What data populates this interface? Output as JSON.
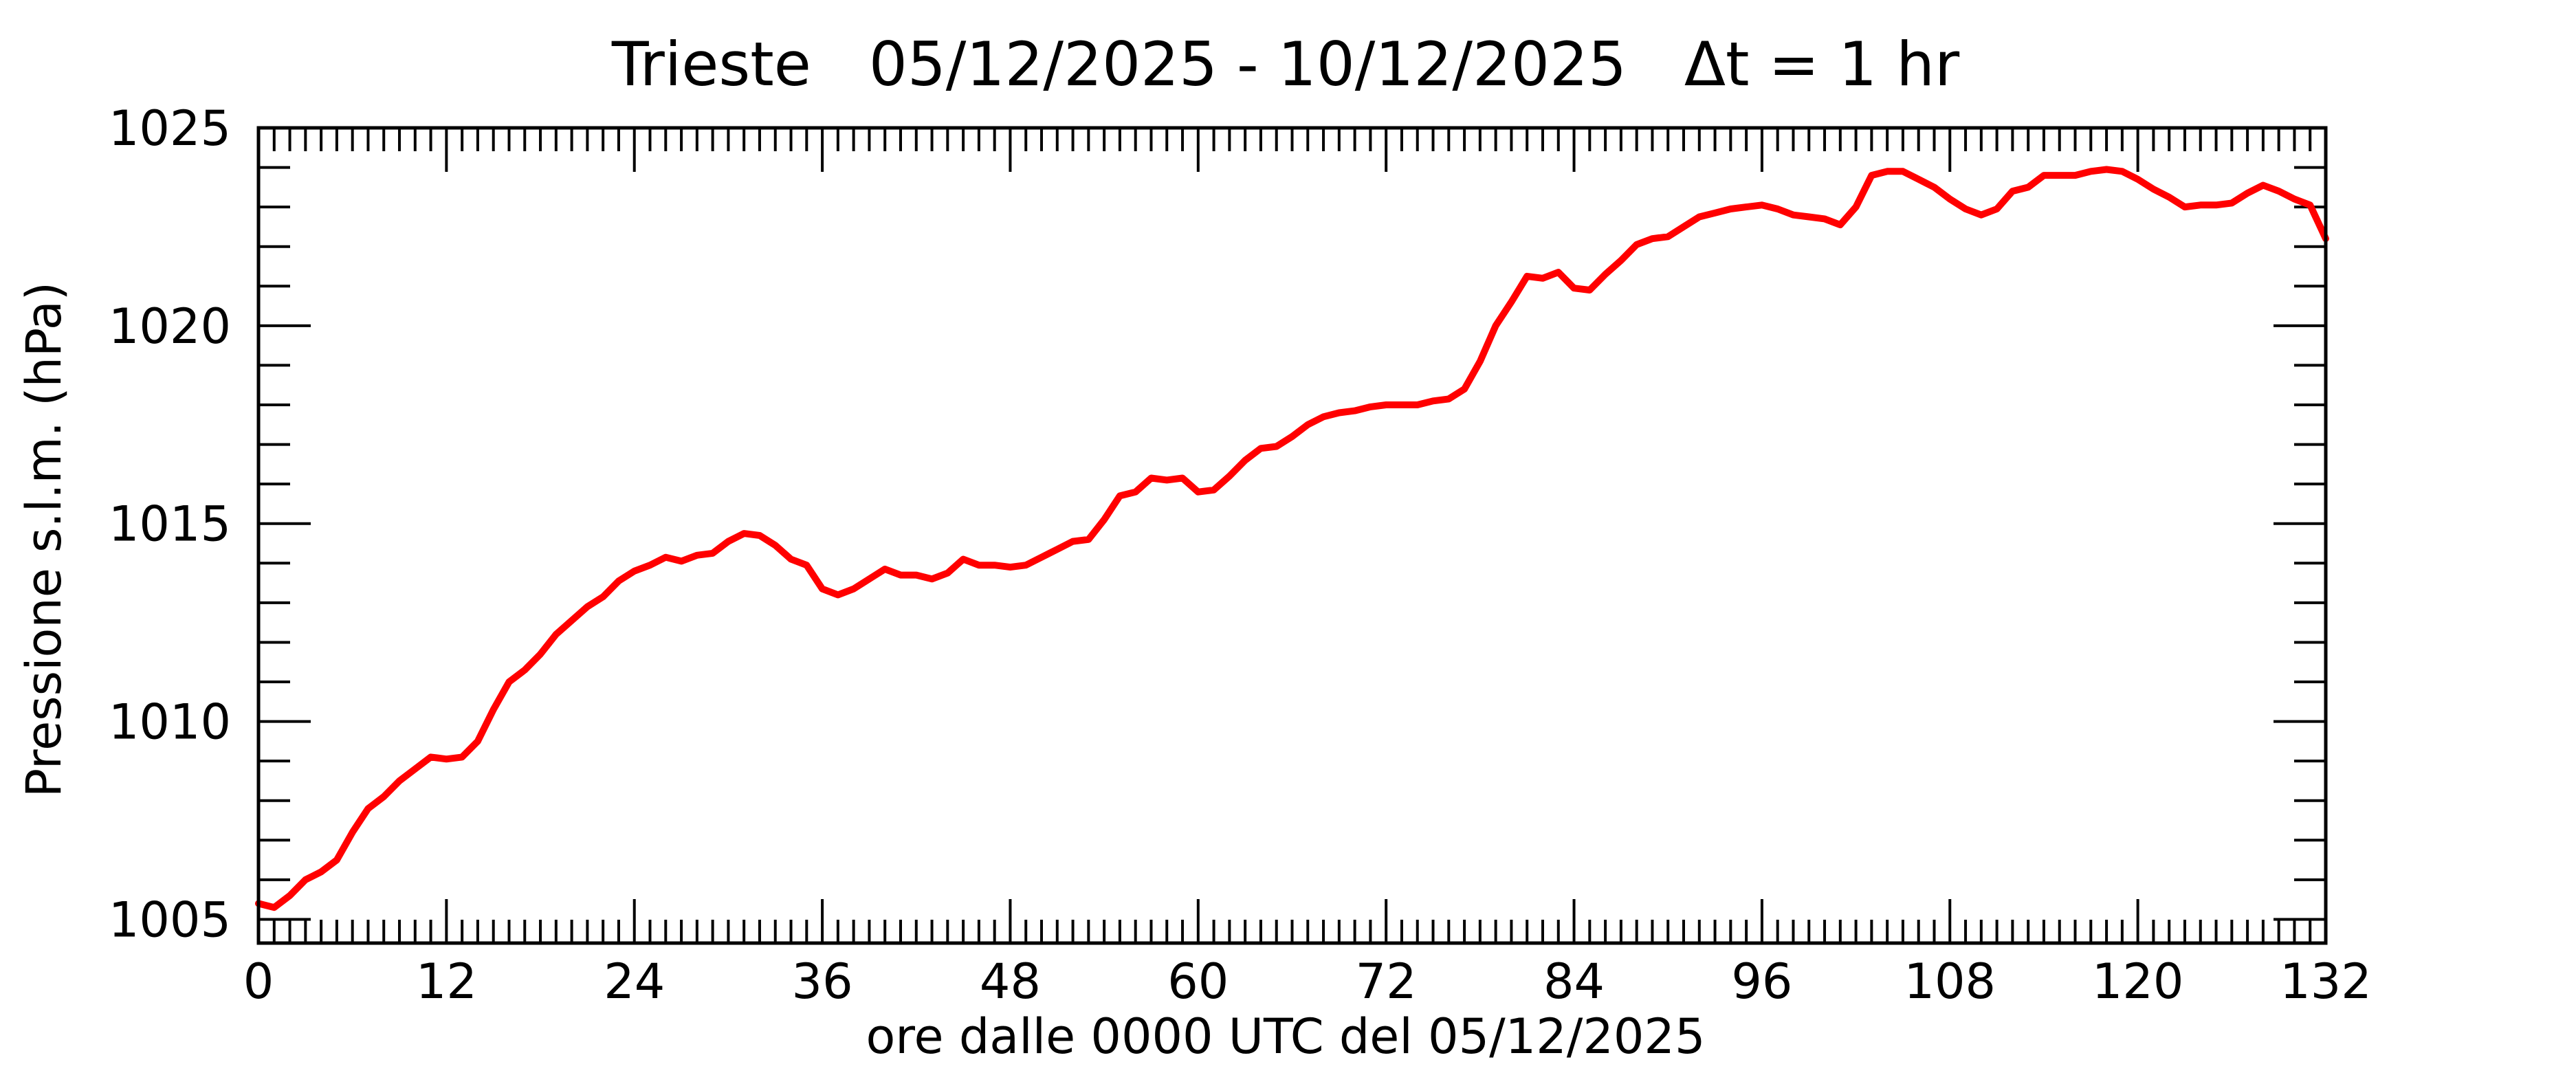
{
  "chart_data": {
    "type": "line",
    "title": "Trieste   05/12/2025 - 10/12/2025   Δt = 1 hr",
    "xlabel": "ore dalle 0000 UTC del 05/12/2025",
    "ylabel": "Pressione s.l.m. (hPa)",
    "xlim": [
      0,
      132
    ],
    "ylim": [
      1004.4,
      1025
    ],
    "x_ticks": [
      0,
      12,
      24,
      36,
      48,
      60,
      72,
      84,
      96,
      108,
      120,
      132
    ],
    "x_tick_labels": [
      "0",
      "12",
      "24",
      "36",
      "48",
      "60",
      "72",
      "84",
      "96",
      "108",
      "120",
      "132"
    ],
    "y_ticks": [
      1005,
      1010,
      1015,
      1020,
      1025
    ],
    "y_tick_labels": [
      "1005",
      "1010",
      "1015",
      "1020",
      "1025"
    ],
    "grid": false,
    "series": [
      {
        "color": "#ff0000",
        "x": [
          0,
          1,
          2,
          3,
          4,
          5,
          6,
          7,
          8,
          9,
          10,
          11,
          12,
          13,
          14,
          15,
          16,
          17,
          18,
          19,
          20,
          21,
          22,
          23,
          24,
          25,
          26,
          27,
          28,
          29,
          30,
          31,
          32,
          33,
          34,
          35,
          36,
          37,
          38,
          39,
          40,
          41,
          42,
          43,
          44,
          45,
          46,
          47,
          48,
          49,
          50,
          51,
          52,
          53,
          54,
          55,
          56,
          57,
          58,
          59,
          60,
          61,
          62,
          63,
          64,
          65,
          66,
          67,
          68,
          69,
          70,
          71,
          72,
          73,
          74,
          75,
          76,
          77,
          78,
          79,
          80,
          81,
          82,
          83,
          84,
          85,
          86,
          87,
          88,
          89,
          90,
          91,
          92,
          93,
          94,
          95,
          96,
          97,
          98,
          99,
          100,
          101,
          102,
          103,
          104,
          105,
          106,
          107,
          108,
          109,
          110,
          111,
          112,
          113,
          114,
          115,
          116,
          117,
          118,
          119,
          120,
          121,
          122,
          123,
          124,
          125,
          126,
          127,
          128,
          129,
          130,
          131,
          132
        ],
        "values": [
          1005.4,
          1005.3,
          1005.6,
          1006.0,
          1006.2,
          1006.5,
          1007.2,
          1007.8,
          1008.1,
          1008.5,
          1008.8,
          1009.1,
          1009.05,
          1009.1,
          1009.5,
          1010.3,
          1011.0,
          1011.3,
          1011.7,
          1012.2,
          1012.55,
          1012.9,
          1013.15,
          1013.55,
          1013.8,
          1013.95,
          1014.15,
          1014.05,
          1014.2,
          1014.25,
          1014.55,
          1014.75,
          1014.7,
          1014.45,
          1014.1,
          1013.95,
          1013.35,
          1013.2,
          1013.35,
          1013.6,
          1013.85,
          1013.7,
          1013.7,
          1013.6,
          1013.75,
          1014.1,
          1013.95,
          1013.95,
          1013.9,
          1013.95,
          1014.15,
          1014.35,
          1014.55,
          1014.6,
          1015.1,
          1015.7,
          1015.8,
          1016.15,
          1016.1,
          1016.15,
          1015.8,
          1015.85,
          1016.2,
          1016.6,
          1016.9,
          1016.95,
          1017.2,
          1017.5,
          1017.7,
          1017.8,
          1017.85,
          1017.95,
          1018.0,
          1018.0,
          1018.0,
          1018.1,
          1018.15,
          1018.4,
          1019.1,
          1020.0,
          1020.6,
          1021.25,
          1021.2,
          1021.35,
          1020.95,
          1020.9,
          1021.3,
          1021.65,
          1022.05,
          1022.2,
          1022.25,
          1022.5,
          1022.75,
          1022.85,
          1022.95,
          1023.0,
          1023.05,
          1022.95,
          1022.8,
          1022.75,
          1022.7,
          1022.55,
          1023.0,
          1023.8,
          1023.9,
          1023.9,
          1023.7,
          1023.5,
          1023.2,
          1022.95,
          1022.8,
          1022.95,
          1023.4,
          1023.5,
          1023.8,
          1023.8,
          1023.8,
          1023.9,
          1023.95,
          1023.9,
          1023.7,
          1023.45,
          1023.25,
          1023.0,
          1023.05,
          1023.05,
          1023.1,
          1023.35,
          1023.55,
          1023.4,
          1023.2,
          1023.05,
          1022.2
        ]
      }
    ]
  }
}
